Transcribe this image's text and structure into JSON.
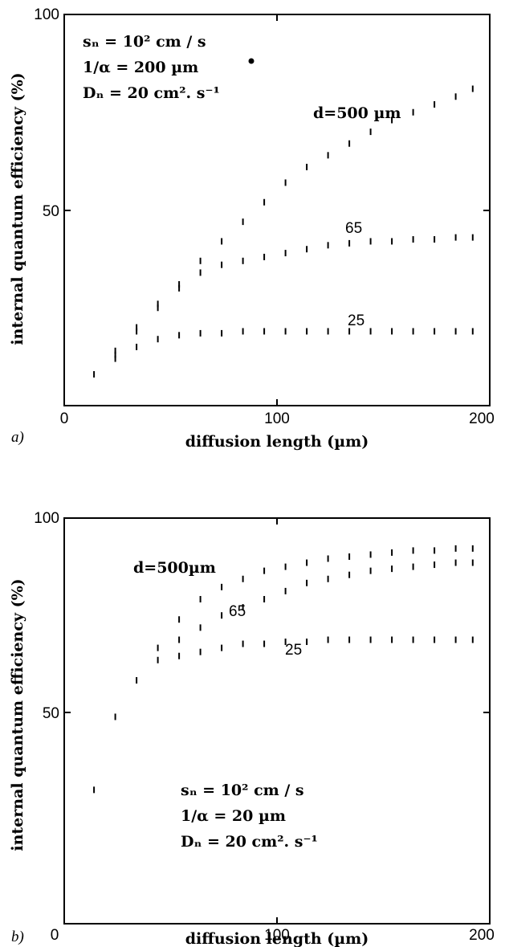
{
  "chart_data": [
    {
      "type": "line",
      "panel_label": "a)",
      "xlabel": "diffusion length (µm)",
      "ylabel": "internal quantum efficiency (%)",
      "xlim": [
        0,
        200
      ],
      "ylim": [
        0,
        100
      ],
      "x_ticks": [
        "0",
        "100",
        "200"
      ],
      "y_ticks": [
        "100",
        "50"
      ],
      "grid": false,
      "annotations": [
        "sₙ = 10² cm / s",
        "1/α = 200 µm",
        "Dₙ = 20 cm². s⁻¹"
      ],
      "series": [
        {
          "name": "d=500 µm",
          "x": [
            14,
            24,
            34,
            44,
            54,
            64,
            74,
            84,
            94,
            104,
            114,
            124,
            134,
            144,
            154,
            164,
            174,
            184,
            192
          ],
          "y": [
            8,
            13,
            20,
            26,
            31,
            37,
            42,
            47,
            52,
            57,
            61,
            64,
            67,
            70,
            73,
            75,
            77,
            79,
            81
          ]
        },
        {
          "name": "65",
          "x": [
            24,
            34,
            44,
            54,
            64,
            74,
            84,
            94,
            104,
            114,
            124,
            134,
            144,
            154,
            164,
            174,
            184,
            192
          ],
          "y": [
            14,
            19,
            25,
            30,
            34,
            36,
            37,
            38,
            39,
            40,
            41,
            41.5,
            42,
            42,
            42.5,
            42.5,
            43,
            43
          ]
        },
        {
          "name": "25",
          "x": [
            24,
            34,
            44,
            54,
            64,
            74,
            84,
            94,
            104,
            114,
            124,
            134,
            144,
            154,
            164,
            174,
            184,
            192
          ],
          "y": [
            12,
            15,
            17,
            18,
            18.5,
            18.5,
            19,
            19,
            19,
            19,
            19,
            19,
            19,
            19,
            19,
            19,
            19,
            19
          ]
        }
      ]
    },
    {
      "type": "line",
      "panel_label": "b)",
      "xlabel": "diffusion length (µm)",
      "ylabel": "internal quantum efficiency (%)",
      "xlim": [
        0,
        200
      ],
      "ylim": [
        0,
        100
      ],
      "x_ticks": [
        "0",
        "100",
        "200"
      ],
      "y_ticks": [
        "100",
        "50"
      ],
      "grid": false,
      "annotations": [
        "sₙ = 10² cm / s",
        "1/α = 20 µm",
        "Dₙ = 20 cm². s⁻¹"
      ],
      "series": [
        {
          "name": "d=500µm",
          "x": [
            14,
            24,
            34,
            44,
            54,
            64,
            74,
            84,
            94,
            104,
            114,
            124,
            134,
            144,
            154,
            164,
            174,
            184,
            192
          ],
          "y": [
            33,
            51,
            60,
            68,
            75,
            80,
            83,
            85,
            87,
            88,
            89,
            90,
            90.5,
            91,
            91.5,
            92,
            92,
            92.5,
            92.5
          ]
        },
        {
          "name": "65",
          "x": [
            44,
            54,
            64,
            74,
            84,
            94,
            104,
            114,
            124,
            134,
            144,
            154,
            164,
            174,
            184,
            192
          ],
          "y": [
            65,
            70,
            73,
            76,
            78,
            80,
            82,
            84,
            85,
            86,
            87,
            87.5,
            88,
            88.5,
            89,
            89
          ]
        },
        {
          "name": "25",
          "x": [
            54,
            64,
            74,
            84,
            94,
            104,
            114,
            124,
            134,
            144,
            154,
            164,
            174,
            184,
            192
          ],
          "y": [
            66,
            67,
            68,
            69,
            69,
            69.5,
            69.5,
            70,
            70,
            70,
            70,
            70,
            70,
            70,
            70
          ]
        }
      ]
    }
  ]
}
